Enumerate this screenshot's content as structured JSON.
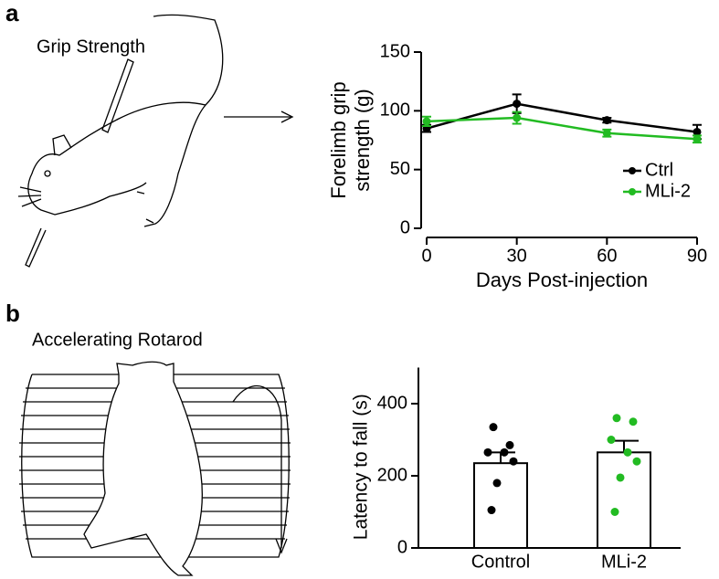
{
  "panels": [
    {
      "letter": "a",
      "illustration": "Grip Strength"
    },
    {
      "letter": "b",
      "illustration": "Accelerating Rotarod"
    }
  ],
  "chart_data": [
    {
      "type": "line",
      "xlabel": "Days Post-injection",
      "ylabel": [
        "Forelimb grip",
        "strength (g)"
      ],
      "x": [
        0,
        30,
        60,
        90
      ],
      "xlim": [
        0,
        90
      ],
      "xticks": [
        0,
        30,
        60,
        90
      ],
      "ylim": [
        0,
        150
      ],
      "yticks": [
        0,
        50,
        100,
        150
      ],
      "legend": "right",
      "series": [
        {
          "name": "Ctrl",
          "color": "#000000",
          "values": [
            85,
            106,
            92,
            82
          ],
          "errors": [
            3,
            8,
            2,
            6
          ]
        },
        {
          "name": "MLi-2",
          "color": "#22bb22",
          "values": [
            91,
            94,
            81,
            76
          ],
          "errors": [
            4,
            5,
            3,
            3
          ]
        }
      ]
    },
    {
      "type": "bar",
      "ylabel": "Latency to fall (s)",
      "categories": [
        "Control",
        "MLi-2"
      ],
      "values": [
        235,
        265
      ],
      "errors": [
        30,
        32
      ],
      "color": "#ffffff",
      "points": [
        [
          335,
          285,
          265,
          265,
          240,
          180,
          105
        ],
        [
          360,
          350,
          300,
          265,
          240,
          195,
          100
        ]
      ],
      "point_colors": [
        "#000000",
        "#22bb22"
      ],
      "ylim": [
        0,
        500
      ],
      "yticks": [
        0,
        200,
        400
      ]
    }
  ]
}
